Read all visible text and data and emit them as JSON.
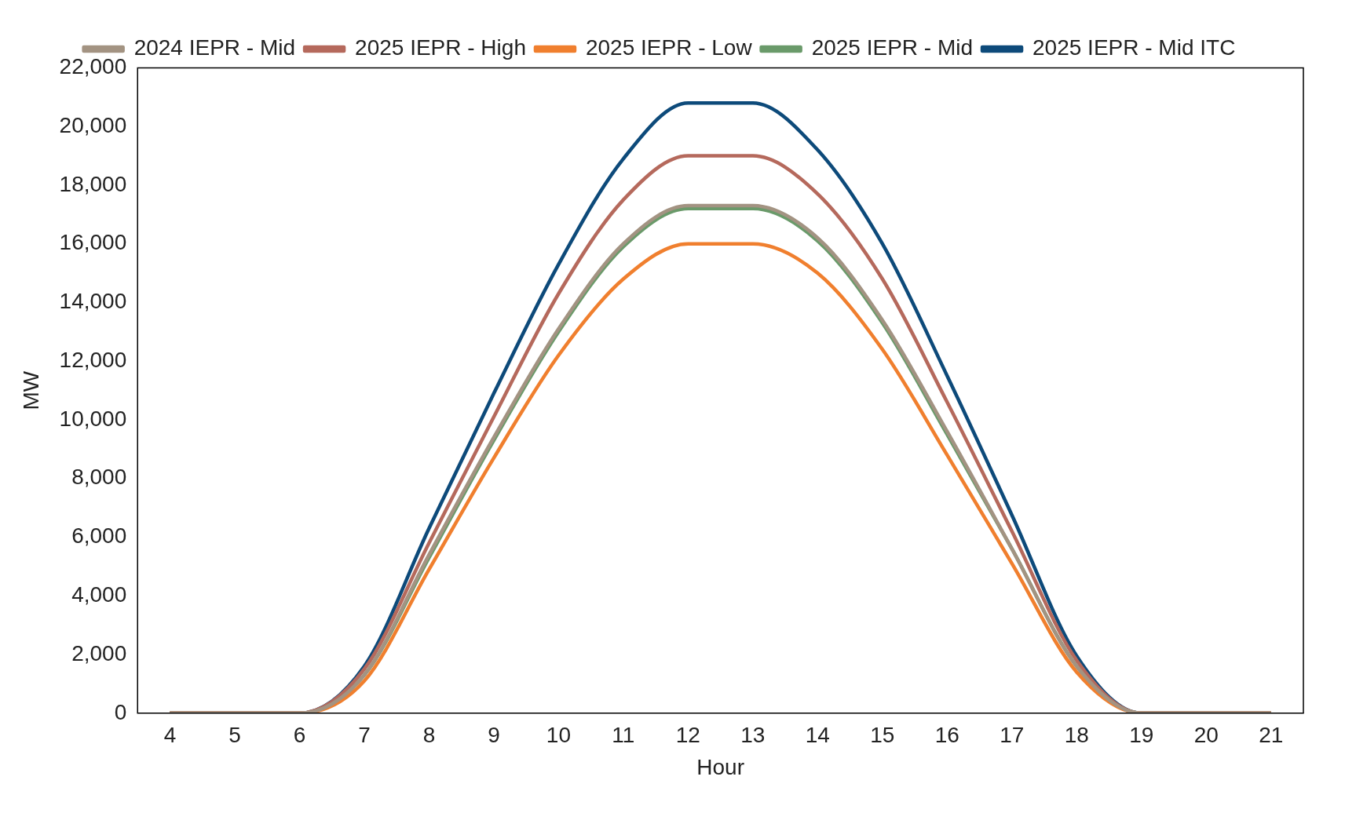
{
  "chart_data": {
    "type": "line",
    "xlabel": "Hour",
    "ylabel": "MW",
    "categories": [
      "4",
      "5",
      "6",
      "7",
      "8",
      "9",
      "10",
      "11",
      "12",
      "13",
      "14",
      "15",
      "16",
      "17",
      "18",
      "19",
      "20",
      "21"
    ],
    "series": [
      {
        "name": "2024 IEPR - Mid",
        "color": "#a39382",
        "values": [
          0,
          0,
          0,
          1300,
          5400,
          9400,
          13100,
          16000,
          17300,
          17300,
          16200,
          13400,
          9600,
          5600,
          1600,
          0,
          0,
          0
        ]
      },
      {
        "name": "2025 IEPR - High",
        "color": "#b5695c",
        "values": [
          0,
          0,
          0,
          1500,
          5800,
          10100,
          14300,
          17500,
          19000,
          19000,
          17700,
          14800,
          10600,
          6200,
          1800,
          0,
          0,
          0
        ]
      },
      {
        "name": "2025 IEPR - Low",
        "color": "#f07f2e",
        "values": [
          0,
          0,
          0,
          1100,
          4900,
          8700,
          12200,
          14800,
          16000,
          16000,
          15000,
          12400,
          8800,
          5100,
          1400,
          0,
          0,
          0
        ]
      },
      {
        "name": "2025 IEPR - Mid",
        "color": "#6a9a6a",
        "values": [
          0,
          0,
          0,
          1300,
          5300,
          9300,
          13000,
          15900,
          17200,
          17200,
          16100,
          13300,
          9500,
          5600,
          1600,
          0,
          0,
          0
        ]
      },
      {
        "name": "2025 IEPR - Mid ITC",
        "color": "#0d4a7a",
        "values": [
          0,
          0,
          0,
          1600,
          6300,
          10900,
          15300,
          18900,
          20800,
          20800,
          19200,
          16000,
          11500,
          6750,
          1950,
          0,
          0,
          0
        ]
      }
    ],
    "ylim": [
      0,
      22000
    ],
    "yticks": [
      0,
      {
        "value": 2000,
        "label": "2,000"
      },
      {
        "value": 4000,
        "label": "4,000"
      },
      {
        "value": 6000,
        "label": "6,000"
      },
      {
        "value": 8000,
        "label": "8,000"
      },
      {
        "value": 10000,
        "label": "10,000"
      },
      {
        "value": 12000,
        "label": "12,000"
      },
      {
        "value": 14000,
        "label": "14,000"
      },
      {
        "value": 16000,
        "label": "16,000"
      },
      {
        "value": 18000,
        "label": "18,000"
      },
      {
        "value": 20000,
        "label": "20,000"
      },
      {
        "value": 22000,
        "label": "22,000"
      }
    ],
    "legend": "top",
    "marker": "none"
  }
}
